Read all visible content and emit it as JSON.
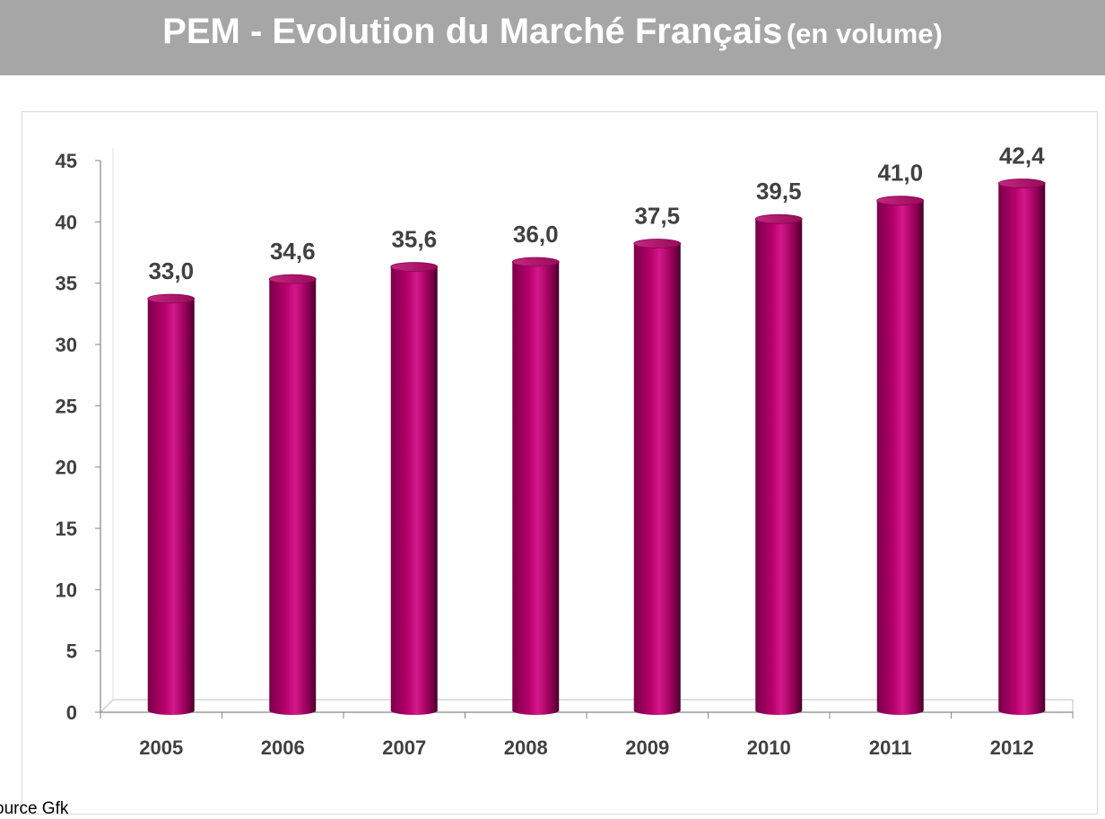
{
  "header": {
    "title": "PEM - Evolution du Marché Français",
    "subtitle": "(en volume)"
  },
  "source": "ource Gfk",
  "colors": {
    "bar": "#b5006b",
    "header_bg": "#a6a6a6",
    "axis_text": "#404040"
  },
  "chart_data": {
    "type": "bar",
    "title": "",
    "xlabel": "",
    "ylabel": "",
    "categories": [
      "2005",
      "2006",
      "2007",
      "2008",
      "2009",
      "2010",
      "2011",
      "2012"
    ],
    "values": [
      33.0,
      34.6,
      35.6,
      36.0,
      37.5,
      39.5,
      41.0,
      42.4
    ],
    "value_labels": [
      "33,0",
      "34,6",
      "35,6",
      "36,0",
      "37,5",
      "39,5",
      "41,0",
      "42,4"
    ],
    "ylim": [
      0,
      45
    ],
    "yticks": [
      0,
      5,
      10,
      15,
      20,
      25,
      30,
      35,
      40,
      45
    ],
    "grid": false,
    "legend": "none",
    "style": "3d-cylinder"
  }
}
